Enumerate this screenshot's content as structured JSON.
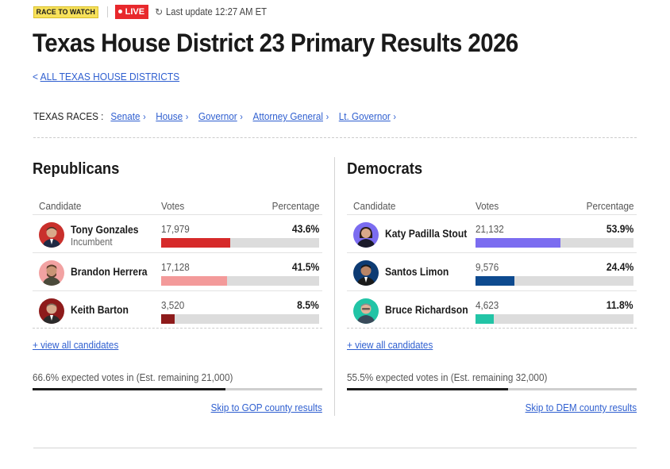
{
  "topbar": {
    "badge": "RACE TO WATCH",
    "live": "LIVE",
    "last_update": "Last update 12:27 AM ET"
  },
  "title": "Texas House District 23 Primary Results 2026",
  "back_link": {
    "chevron": "<",
    "label": "ALL TEXAS HOUSE DISTRICTS"
  },
  "races": {
    "label": "TEXAS RACES :",
    "items": [
      {
        "label": "Senate"
      },
      {
        "label": "House"
      },
      {
        "label": "Governor"
      },
      {
        "label": "Attorney General"
      },
      {
        "label": "Lt. Governor"
      }
    ]
  },
  "columns": {
    "candidate": "Candidate",
    "votes": "Votes",
    "percentage": "Percentage"
  },
  "republicans": {
    "party": "Republicans",
    "candidates": [
      {
        "name": "Tony Gonzales",
        "sub": "Incumbent",
        "votes": "17,979",
        "pct": "43.6%",
        "share": 43.6,
        "color": "#d62a2a",
        "avatar_bg": "#c9302c"
      },
      {
        "name": "Brandon Herrera",
        "sub": "",
        "votes": "17,128",
        "pct": "41.5%",
        "share": 41.5,
        "color": "#f39a9a",
        "avatar_bg": "#f2a2a2"
      },
      {
        "name": "Keith Barton",
        "sub": "",
        "votes": "3,520",
        "pct": "8.5%",
        "share": 8.5,
        "color": "#8e1b1b",
        "avatar_bg": "#8e1b1b"
      }
    ],
    "view_all": "+ view all candidates",
    "expected": "66.6% expected votes in (Est. remaining 21,000)",
    "expected_share": 66.6,
    "skip": "Skip to GOP county results"
  },
  "democrats": {
    "party": "Democrats",
    "candidates": [
      {
        "name": "Katy Padilla Stout",
        "sub": "",
        "votes": "21,132",
        "pct": "53.9%",
        "share": 53.9,
        "color": "#7b6cf0",
        "avatar_bg": "#7b6cf0"
      },
      {
        "name": "Santos Limon",
        "sub": "",
        "votes": "9,576",
        "pct": "24.4%",
        "share": 24.4,
        "color": "#0d4a8f",
        "avatar_bg": "#0d3b73"
      },
      {
        "name": "Bruce Richardson",
        "sub": "",
        "votes": "4,623",
        "pct": "11.8%",
        "share": 11.8,
        "color": "#22c4a6",
        "avatar_bg": "#22c4a6"
      }
    ],
    "view_all": "+ view all candidates",
    "expected": "55.5% expected votes in (Est. remaining 32,000)",
    "expected_share": 55.5,
    "skip": "Skip to DEM county results"
  },
  "icons": {
    "refresh": "refresh-icon",
    "back": "chevron-left-icon",
    "race_chevron": "chevron-right-icon",
    "avatar": "candidate-photo"
  }
}
